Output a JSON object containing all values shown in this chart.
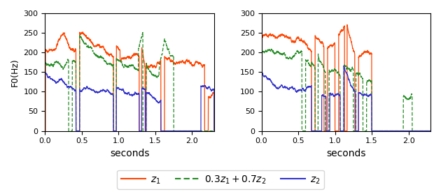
{
  "ylabel": "F0(Hz)",
  "xlabel": "seconds",
  "ylim": [
    0,
    300
  ],
  "yticks": [
    0,
    50,
    100,
    150,
    200,
    250,
    300
  ],
  "colors": {
    "z1": "#FF4500",
    "mix": "#228B22",
    "z2": "#3333CC"
  },
  "figsize": [
    6.3,
    2.78
  ],
  "dpi": 100
}
